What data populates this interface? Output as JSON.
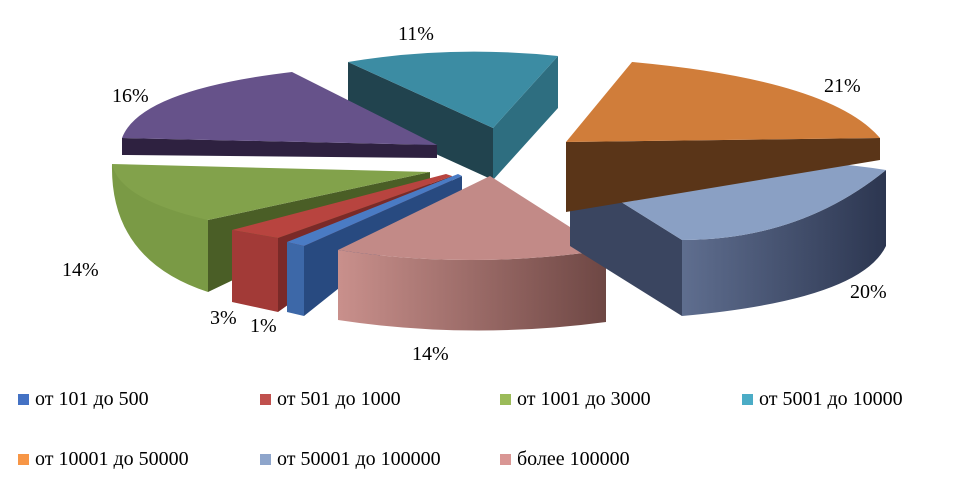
{
  "chart_data": {
    "type": "pie",
    "title": "",
    "categories": [
      "от 101  до 500",
      "от 501  до 1000",
      "от 1001  до 3000",
      "от 5001  до 10000",
      "от 10001  до 50000",
      "от 50001  до 100000",
      "более 100000"
    ],
    "values": [
      1,
      3,
      14,
      11,
      21,
      20,
      14
    ],
    "labels": [
      "1%",
      "3%",
      "14%",
      "11%",
      "21%",
      "20%",
      "14%"
    ],
    "colors": [
      "#4472C4",
      "#C0504D",
      "#9BBB59",
      "#4BACC6",
      "#F79646",
      "#8EA5CB",
      "#D99694"
    ],
    "extra_slice": {
      "value": 16,
      "label": "16%",
      "color": "#8064A2"
    },
    "legend_position": "bottom",
    "style": "3d-exploded"
  }
}
